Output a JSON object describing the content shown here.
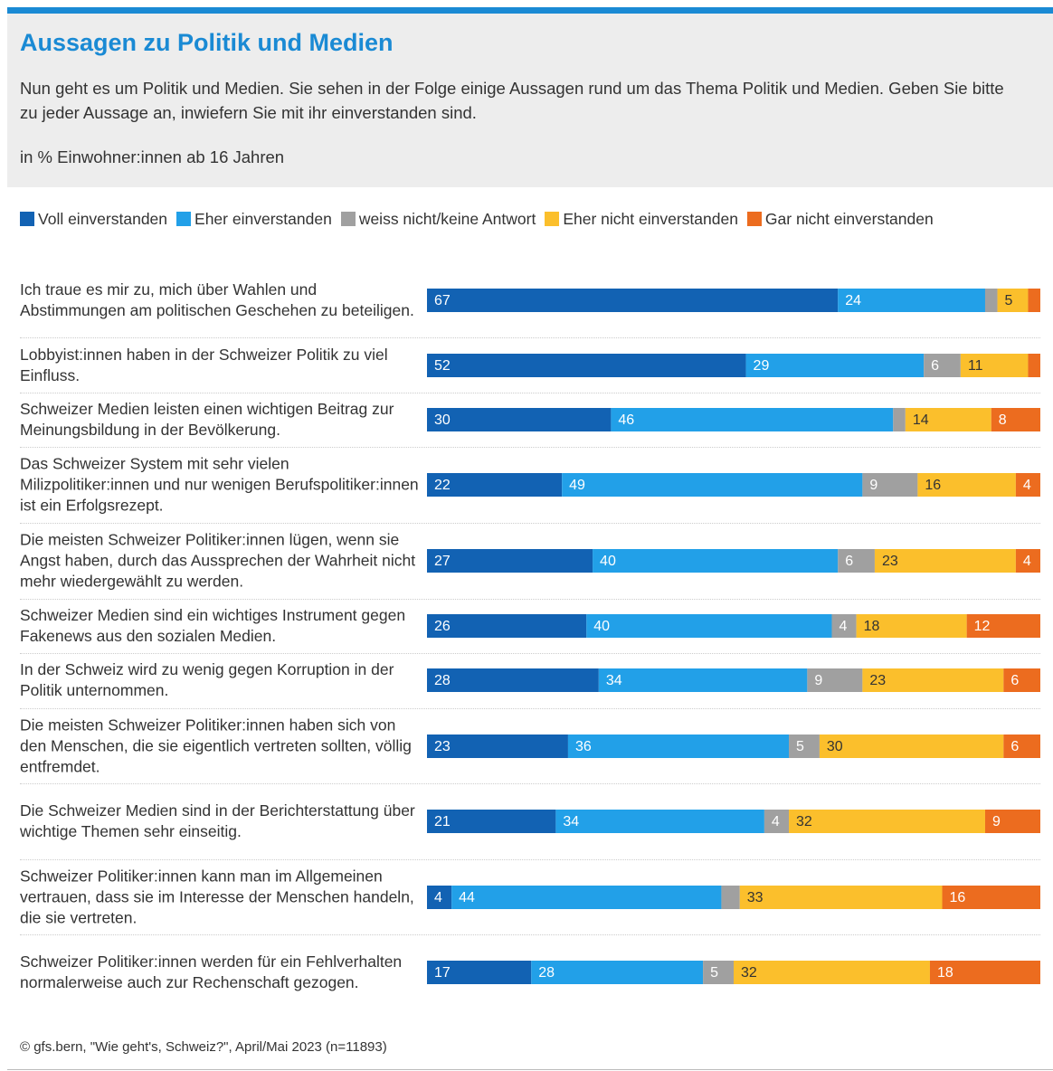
{
  "chart_data": {
    "type": "stacked-bar-horizontal",
    "title": "Aussagen zu Politik und Medien",
    "subtitle": "Nun geht es um Politik und Medien. Sie sehen in der Folge einige Aussagen rund um das Thema Politik und Medien. Geben Sie bitte zu jeder Aussage an, inwiefern Sie mit ihr einverstanden sind.",
    "unit_note": "in % Einwohner:innen ab 16 Jahren",
    "source": "© gfs.bern, \"Wie geht's, Schweiz?\", April/Mai 2023 (n=11893)",
    "xlim": [
      0,
      100
    ],
    "categories": [
      "Ich traue es mir zu, mich über Wahlen und Abstimmungen am politischen Geschehen zu beteiligen.",
      "Lobbyist:innen haben in der Schweizer Politik zu viel Einfluss.",
      "Schweizer Medien leisten einen wichtigen Beitrag zur Meinungsbildung in der Bevölkerung.",
      "Das Schweizer System mit sehr vielen Milizpolitiker:innen und nur wenigen Berufspolitiker:innen ist ein Erfolgsrezept.",
      "Die meisten Schweizer Politiker:innen lügen, wenn sie Angst haben, durch das Aussprechen der Wahrheit nicht mehr wiedergewählt zu werden.",
      "Schweizer Medien sind ein wichtiges Instrument gegen Fakenews aus den sozialen Medien.",
      "In der Schweiz wird zu wenig gegen Korruption in der Politik unternommen.",
      "Die meisten Schweizer Politiker:innen haben sich von den Menschen, die sie eigentlich vertreten sollten, völlig entfremdet.",
      "Die Schweizer Medien sind in der Berichterstattung über wichtige Themen sehr einseitig.",
      "Schweizer Politiker:innen kann man im Allgemeinen vertrauen, dass sie im Interesse der Menschen handeln, die sie vertreten.",
      "Schweizer Politiker:innen werden für ein Fehlverhalten normalerweise auch zur Rechenschaft gezogen."
    ],
    "series": [
      {
        "name": "Voll einverstanden",
        "color": "#1262b3",
        "label_color": "#ffffff",
        "values": [
          67,
          52,
          30,
          22,
          27,
          26,
          28,
          23,
          21,
          4,
          17
        ]
      },
      {
        "name": "Eher einverstanden",
        "color": "#22a0e8",
        "label_color": "#ffffff",
        "values": [
          24,
          29,
          46,
          49,
          40,
          40,
          34,
          36,
          34,
          44,
          28
        ]
      },
      {
        "name": "weiss nicht/keine Antwort",
        "color": "#a0a0a0",
        "label_color": "#ffffff",
        "values": [
          2,
          6,
          2,
          9,
          6,
          4,
          9,
          5,
          4,
          3,
          5
        ],
        "value_labels": [
          null,
          "6",
          null,
          "9",
          "6",
          "4",
          "9",
          "5",
          "4",
          null,
          "5"
        ]
      },
      {
        "name": "Eher nicht einverstanden",
        "color": "#fbbf2c",
        "label_color": "#333333",
        "values": [
          5,
          11,
          14,
          16,
          23,
          18,
          23,
          30,
          32,
          33,
          32
        ]
      },
      {
        "name": "Gar nicht einverstanden",
        "color": "#ec6c1f",
        "label_color": "#ffffff",
        "values": [
          2,
          2,
          8,
          4,
          4,
          12,
          6,
          6,
          9,
          16,
          18
        ],
        "value_labels": [
          null,
          null,
          "8",
          "4",
          "4",
          "12",
          "6",
          "6",
          "9",
          "16",
          "18"
        ]
      }
    ]
  }
}
